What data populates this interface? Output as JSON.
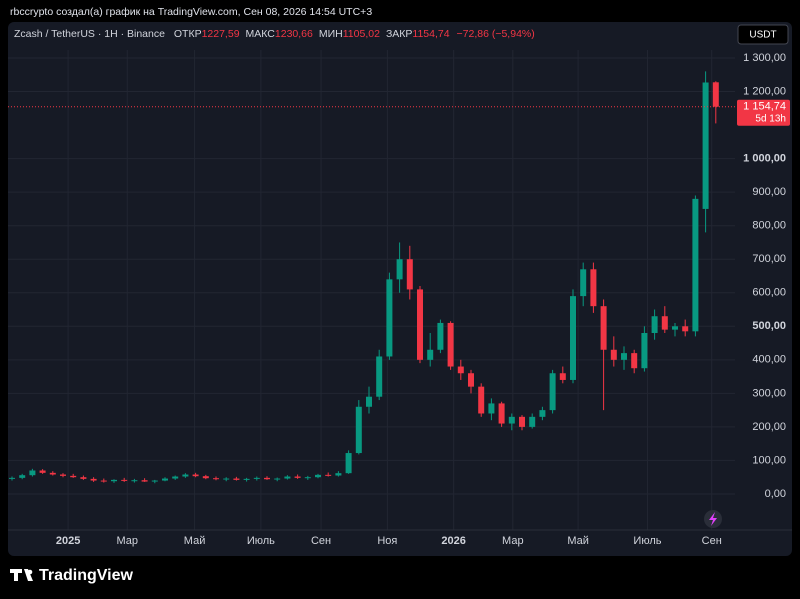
{
  "header": "rbccrypto создал(а) график на TradingView.com, Сен 08, 2026 14:54 UTC+3",
  "chart_data": {
    "type": "candlestick",
    "symbol": "Zcash / TetherUS · 1H · Binance",
    "legend": [
      {
        "label": "ОТКР",
        "value": "1227,59"
      },
      {
        "label": "МАКС",
        "value": "1230,66"
      },
      {
        "label": "МИН",
        "value": "1105,02"
      },
      {
        "label": "ЗАКР",
        "value": "1154,74"
      }
    ],
    "change": "−72,86 (−5,94%)",
    "currency": "USDT",
    "price_label": "1 154,74",
    "countdown": "5d 13h",
    "categories": [
      null,
      null,
      null,
      null,
      null,
      null,
      null,
      null,
      null,
      null,
      null,
      null,
      null,
      null,
      null,
      null,
      null,
      null,
      null,
      null,
      null,
      null,
      null,
      null,
      null,
      null,
      null,
      null,
      null,
      null,
      null,
      null,
      null,
      null,
      null,
      null,
      null,
      null,
      null,
      null,
      null,
      null,
      null,
      null,
      null,
      null,
      null,
      null,
      null,
      null,
      null,
      null,
      null,
      null,
      null,
      null,
      null,
      null,
      null,
      null,
      null,
      null,
      null,
      null,
      null,
      null,
      null,
      null,
      null,
      null
    ],
    "open": [
      45,
      48,
      56,
      70,
      63,
      58,
      54,
      50,
      45,
      40,
      38,
      42,
      39,
      41,
      37,
      40,
      46,
      52,
      58,
      53,
      47,
      44,
      46,
      42,
      45,
      48,
      44,
      46,
      52,
      48,
      50,
      57,
      55,
      62,
      122,
      260,
      290,
      410,
      640,
      700,
      610,
      400,
      430,
      510,
      380,
      360,
      320,
      240,
      270,
      210,
      230,
      200,
      230,
      250,
      360,
      340,
      590,
      670,
      560,
      430,
      400,
      420,
      375,
      480,
      530,
      490,
      500,
      485,
      850,
      1227.59
    ],
    "high": [
      52,
      60,
      75,
      74,
      68,
      62,
      60,
      55,
      50,
      46,
      44,
      48,
      45,
      47,
      42,
      50,
      55,
      62,
      63,
      57,
      52,
      50,
      51,
      48,
      52,
      53,
      49,
      56,
      58,
      54,
      60,
      64,
      68,
      130,
      280,
      320,
      430,
      660,
      750,
      740,
      620,
      480,
      520,
      515,
      400,
      370,
      330,
      285,
      275,
      240,
      235,
      240,
      260,
      370,
      380,
      610,
      690,
      690,
      580,
      470,
      440,
      430,
      500,
      550,
      560,
      510,
      520,
      890,
      1260,
      1230.66
    ],
    "low": [
      40,
      44,
      52,
      60,
      55,
      50,
      48,
      42,
      36,
      34,
      33,
      36,
      34,
      36,
      32,
      38,
      42,
      48,
      50,
      44,
      41,
      38,
      40,
      37,
      40,
      42,
      38,
      43,
      45,
      42,
      47,
      52,
      52,
      60,
      118,
      240,
      280,
      400,
      600,
      580,
      390,
      380,
      420,
      370,
      340,
      300,
      230,
      220,
      200,
      190,
      190,
      195,
      220,
      240,
      330,
      330,
      560,
      540,
      250,
      380,
      370,
      360,
      365,
      460,
      480,
      470,
      470,
      470,
      780,
      1105.02
    ],
    "close": [
      48,
      56,
      70,
      63,
      58,
      54,
      50,
      45,
      40,
      38,
      42,
      39,
      41,
      37,
      40,
      46,
      52,
      58,
      53,
      47,
      44,
      46,
      42,
      45,
      48,
      44,
      46,
      52,
      48,
      50,
      57,
      55,
      62,
      122,
      260,
      290,
      410,
      640,
      700,
      610,
      400,
      430,
      510,
      380,
      360,
      320,
      240,
      270,
      210,
      230,
      200,
      230,
      250,
      360,
      340,
      590,
      670,
      560,
      430,
      400,
      420,
      375,
      480,
      530,
      490,
      500,
      485,
      880,
      1227,
      1154.74
    ],
    "up_color": "#089981",
    "down_color": "#f23645",
    "ylim": [
      -100,
      1340
    ],
    "yticks": [
      {
        "value": 0,
        "label": "0,00"
      },
      {
        "value": 100,
        "label": "100,00"
      },
      {
        "value": 200,
        "label": "200,00"
      },
      {
        "value": 300,
        "label": "300,00"
      },
      {
        "value": 400,
        "label": "400,00"
      },
      {
        "value": 500,
        "label": "500,00"
      },
      {
        "value": 600,
        "label": "600,00"
      },
      {
        "value": 700,
        "label": "700,00"
      },
      {
        "value": 800,
        "label": "800,00"
      },
      {
        "value": 900,
        "label": "900,00"
      },
      {
        "value": 1000,
        "label": "1 000,00"
      },
      {
        "value": 1200,
        "label": "1 200,00"
      },
      {
        "value": 1300,
        "label": "1 300,00"
      }
    ],
    "xticks": [
      {
        "value": 5.5,
        "label": "2025"
      },
      {
        "value": 11.3,
        "label": "Мар"
      },
      {
        "value": 17.9,
        "label": "Май"
      },
      {
        "value": 24.4,
        "label": "Июль"
      },
      {
        "value": 30.3,
        "label": "Сен"
      },
      {
        "value": 36.8,
        "label": "Ноя"
      },
      {
        "value": 43.3,
        "label": "2026"
      },
      {
        "value": 49.1,
        "label": "Мар"
      },
      {
        "value": 55.5,
        "label": "Май"
      },
      {
        "value": 62.3,
        "label": "Июль"
      },
      {
        "value": 68.6,
        "label": "Сен"
      }
    ],
    "grid": true,
    "brand": "TradingView"
  }
}
